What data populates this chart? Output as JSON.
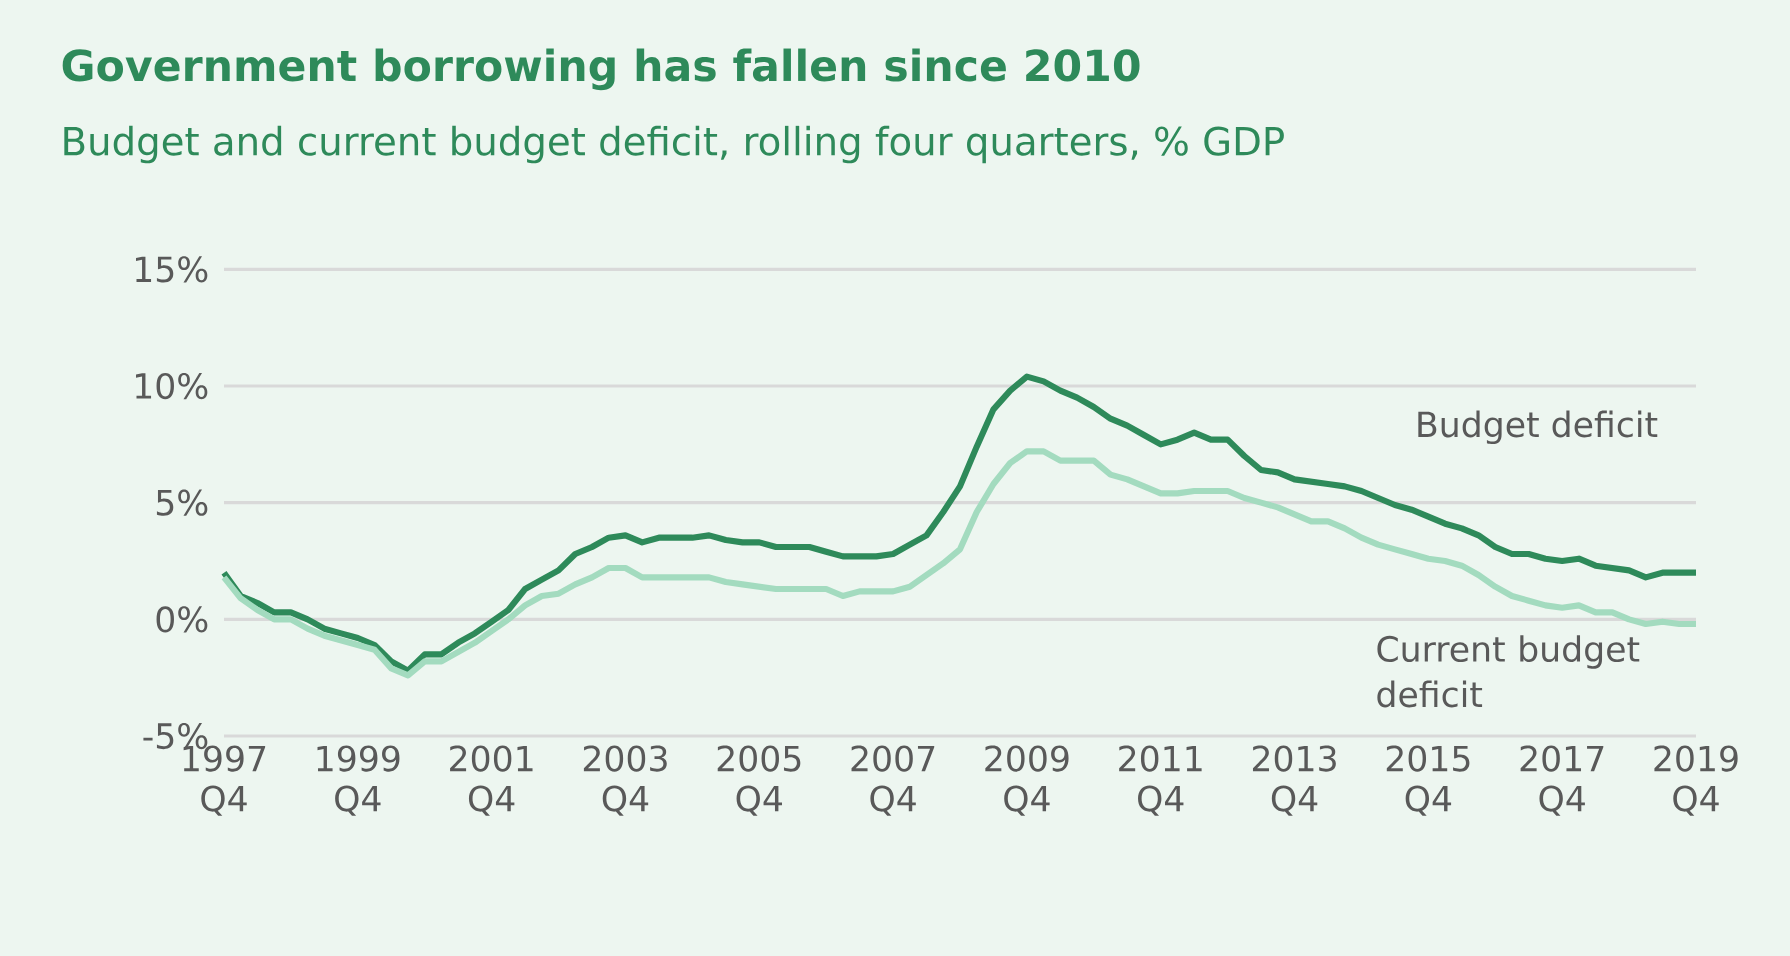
{
  "chart_data": {
    "type": "line",
    "title": "Government borrowing has fallen since 2010",
    "subtitle": "Budget and current budget deficit, rolling four quarters, % GDP",
    "categories": [
      "1997 Q4",
      null,
      null,
      null,
      null,
      null,
      null,
      null,
      "1999 Q4",
      null,
      null,
      null,
      null,
      null,
      null,
      null,
      "2001 Q4",
      null,
      null,
      null,
      null,
      null,
      null,
      null,
      "2003 Q4",
      null,
      null,
      null,
      null,
      null,
      null,
      null,
      "2005 Q4",
      null,
      null,
      null,
      null,
      null,
      null,
      null,
      "2007 Q4",
      null,
      null,
      null,
      null,
      null,
      null,
      null,
      "2009 Q4",
      null,
      null,
      null,
      null,
      null,
      null,
      null,
      "2011 Q4",
      null,
      null,
      null,
      null,
      null,
      null,
      null,
      "2013 Q4",
      null,
      null,
      null,
      null,
      null,
      null,
      null,
      "2015 Q4",
      null,
      null,
      null,
      null,
      null,
      null,
      null,
      "2017 Q4",
      null,
      null,
      null,
      null,
      null,
      null,
      null,
      "2019 Q4"
    ],
    "ylim": [
      -5,
      15
    ],
    "yticks": [
      {
        "value": -5,
        "label": "-5%"
      },
      {
        "value": 0,
        "label": "0%"
      },
      {
        "value": 5,
        "label": "5%"
      },
      {
        "value": 10,
        "label": "10%"
      },
      {
        "value": 15,
        "label": "15%"
      }
    ],
    "grid": "y",
    "legend": false,
    "marker": "none",
    "line_style": "solid",
    "series": [
      {
        "name": "Budget deficit",
        "color": "#2e8a5a",
        "values": [
          2.0,
          1.0,
          0.7,
          0.3,
          0.3,
          0.0,
          -0.4,
          -0.6,
          -0.8,
          -1.1,
          -1.8,
          -2.2,
          -1.5,
          -1.5,
          -1.0,
          -0.6,
          -0.1,
          0.4,
          1.3,
          1.7,
          2.1,
          2.8,
          3.1,
          3.5,
          3.6,
          3.3,
          3.5,
          3.5,
          3.5,
          3.6,
          3.4,
          3.3,
          3.3,
          3.1,
          3.1,
          3.1,
          2.9,
          2.7,
          2.7,
          2.7,
          2.8,
          3.2,
          3.6,
          4.6,
          5.7,
          7.4,
          9.0,
          9.8,
          10.4,
          10.2,
          9.8,
          9.5,
          9.1,
          8.6,
          8.3,
          7.9,
          7.5,
          7.7,
          8.0,
          7.7,
          7.7,
          7.0,
          6.4,
          6.3,
          6.0,
          5.9,
          5.8,
          5.7,
          5.5,
          5.2,
          4.9,
          4.7,
          4.4,
          4.1,
          3.9,
          3.6,
          3.1,
          2.8,
          2.8,
          2.6,
          2.5,
          2.6,
          2.3,
          2.2,
          2.1,
          1.8,
          2.0,
          2.0,
          2.0
        ]
      },
      {
        "name": "Current budget deficit",
        "color": "#a3dbbf",
        "values": [
          1.8,
          0.9,
          0.4,
          0.0,
          0.0,
          -0.4,
          -0.7,
          -0.9,
          -1.1,
          -1.3,
          -2.1,
          -2.4,
          -1.8,
          -1.8,
          -1.4,
          -1.0,
          -0.5,
          0.0,
          0.6,
          1.0,
          1.1,
          1.5,
          1.8,
          2.2,
          2.2,
          1.8,
          1.8,
          1.8,
          1.8,
          1.8,
          1.6,
          1.5,
          1.4,
          1.3,
          1.3,
          1.3,
          1.3,
          1.0,
          1.2,
          1.2,
          1.2,
          1.4,
          1.9,
          2.4,
          3.0,
          4.6,
          5.8,
          6.7,
          7.2,
          7.2,
          6.8,
          6.8,
          6.8,
          6.2,
          6.0,
          5.7,
          5.4,
          5.4,
          5.5,
          5.5,
          5.5,
          5.2,
          5.0,
          4.8,
          4.5,
          4.2,
          4.2,
          3.9,
          3.5,
          3.2,
          3.0,
          2.8,
          2.6,
          2.5,
          2.3,
          1.9,
          1.4,
          1.0,
          0.8,
          0.6,
          0.5,
          0.6,
          0.3,
          0.3,
          0.0,
          -0.2,
          -0.1,
          -0.2,
          -0.2
        ]
      }
    ]
  }
}
